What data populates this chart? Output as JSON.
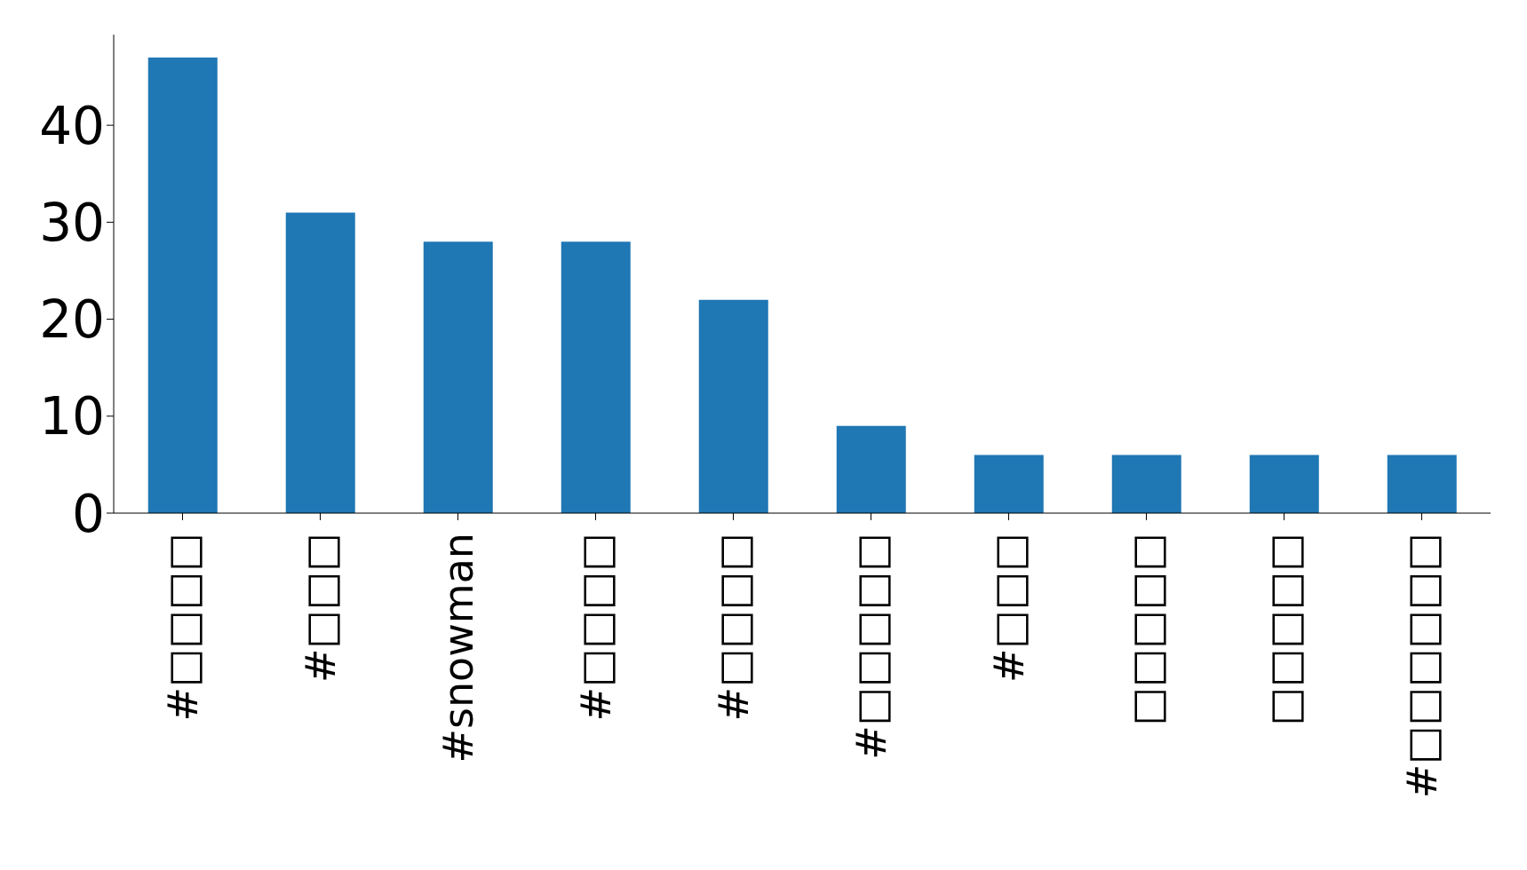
{
  "chart_data": {
    "type": "bar",
    "categories": [
      "#□□□□",
      "#□□□",
      "#snowman",
      "#□□□□",
      "#□□□□",
      "#□□□□□",
      "#□□□",
      "□□□□□",
      "□□□□□",
      "#□□□□□□"
    ],
    "values": [
      47,
      31,
      28,
      28,
      22,
      9,
      6,
      6,
      6,
      6
    ],
    "color": "#1f77b4",
    "ylim": [
      0,
      49.35
    ],
    "yticks": [
      0,
      10,
      20,
      30,
      40
    ]
  }
}
